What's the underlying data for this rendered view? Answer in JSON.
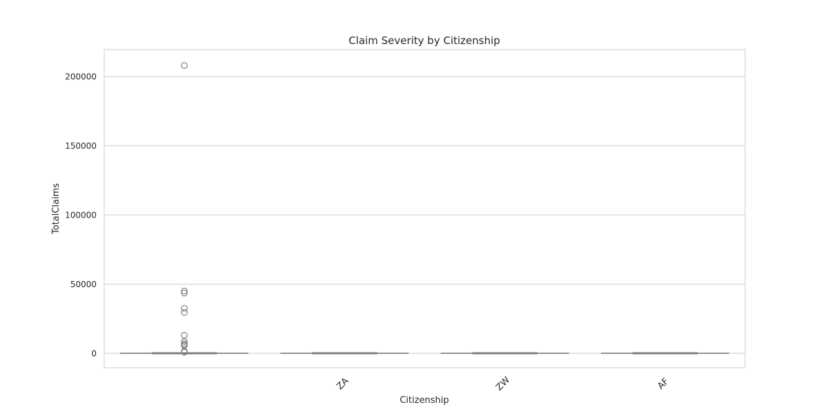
{
  "chart_data": {
    "type": "box",
    "title": "Claim Severity by Citizenship",
    "xlabel": "Citizenship",
    "ylabel": "TotalClaims",
    "ylim": [
      -10500,
      219500
    ],
    "grid": true,
    "yticks": [
      0,
      50000,
      100000,
      150000,
      200000
    ],
    "categories": [
      "",
      "ZA",
      "ZW",
      "AF"
    ],
    "boxes": [
      {
        "category": "",
        "whisker_low": 0,
        "q1": 0,
        "median": 0,
        "q3": 0,
        "whisker_high": 0,
        "outliers": [
          208000,
          45000,
          43500,
          32500,
          29500,
          13000,
          8500,
          7000,
          6000,
          5500,
          1500,
          800
        ]
      },
      {
        "category": "ZA",
        "whisker_low": 0,
        "q1": 0,
        "median": 0,
        "q3": 0,
        "whisker_high": 0,
        "outliers": []
      },
      {
        "category": "ZW",
        "whisker_low": 0,
        "q1": 0,
        "median": 0,
        "q3": 0,
        "whisker_high": 0,
        "outliers": []
      },
      {
        "category": "AF",
        "whisker_low": 0,
        "q1": 0,
        "median": 0,
        "q3": 0,
        "whisker_high": 0,
        "outliers": []
      }
    ],
    "colors": {
      "grid": "#cccccc",
      "frame": "#cccccc",
      "box": "#7f7f7f",
      "text": "#262626"
    }
  }
}
